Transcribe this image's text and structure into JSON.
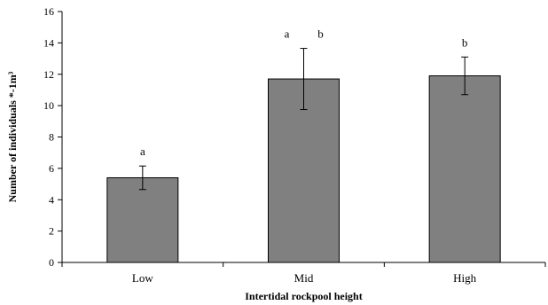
{
  "chart_data": {
    "type": "bar",
    "categories": [
      "Low",
      "Mid",
      "High"
    ],
    "values": [
      5.4,
      11.7,
      11.9
    ],
    "error": [
      0.75,
      1.95,
      1.2
    ],
    "significance_labels": [
      [
        "a"
      ],
      [
        "a",
        "b"
      ],
      [
        "b"
      ]
    ],
    "xlabel": "Intertidal  rockpool height",
    "ylabel": "Number  of individuals *-1m³",
    "ylim": [
      0,
      16
    ],
    "yticks": [
      0,
      2,
      4,
      6,
      8,
      10,
      12,
      14,
      16
    ],
    "grid": false,
    "legend": "none",
    "colors": {
      "bar": "#808080",
      "bar_stroke": "#000000",
      "axis": "#000000"
    }
  }
}
